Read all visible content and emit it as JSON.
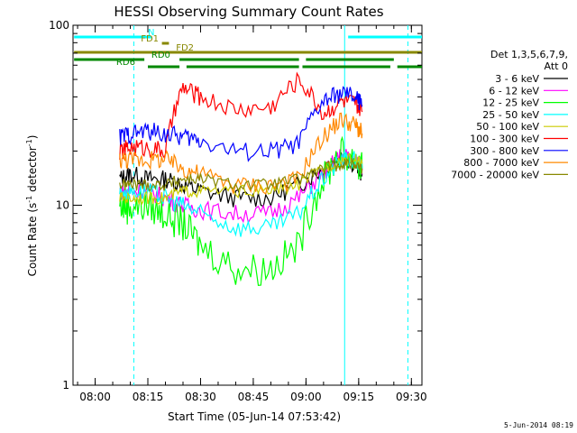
{
  "chart_data": {
    "type": "line",
    "title": "HESSI Observing Summary Count Rates",
    "xlabel": "Start Time (05-Jun-14 07:53:42)",
    "ylabel": "Count Rate (s",
    "ylabel_sup": "-1",
    "ylabel_tail": " detector",
    "ylabel_sup2": "-1",
    "ylabel_close": ")",
    "yscale": "log",
    "ylim": [
      1,
      100
    ],
    "xlim": [
      "07:53:42",
      "09:33:00"
    ],
    "x_ticks": [
      "08:00",
      "08:15",
      "08:30",
      "08:45",
      "09:00",
      "09:15",
      "09:30"
    ],
    "y_ticks": [
      "1",
      "10",
      "100"
    ],
    "legend_header": [
      "Det 1,3,5,6,7,9,",
      "Att 0"
    ],
    "series": [
      {
        "name": "3 - 6 keV",
        "color": "#000000",
        "x": [
          "08:07",
          "08:10",
          "08:15",
          "08:20",
          "08:25",
          "08:30",
          "08:40",
          "08:50",
          "08:58",
          "09:05",
          "09:10",
          "09:14",
          "09:16"
        ],
        "y": [
          14,
          15,
          14,
          14,
          13,
          12,
          11,
          11,
          13,
          16,
          19,
          17,
          15
        ]
      },
      {
        "name": "6 - 12 keV",
        "color": "#ff00ff",
        "x": [
          "08:07",
          "08:10",
          "08:15",
          "08:20",
          "08:25",
          "08:30",
          "08:40",
          "08:50",
          "08:58",
          "09:05",
          "09:10",
          "09:14",
          "09:16"
        ],
        "y": [
          12,
          12,
          12,
          11,
          10,
          9.5,
          9,
          9,
          11,
          15,
          19,
          18,
          16
        ]
      },
      {
        "name": "12 - 25 keV",
        "color": "#00ff00",
        "x": [
          "08:07",
          "08:10",
          "08:15",
          "08:20",
          "08:25",
          "08:30",
          "08:40",
          "08:50",
          "08:58",
          "09:05",
          "09:10",
          "09:14",
          "09:16"
        ],
        "y": [
          10,
          10,
          10,
          9,
          8,
          6,
          4.5,
          4.5,
          6,
          14,
          20,
          18,
          16
        ]
      },
      {
        "name": "25 - 50 keV",
        "color": "#00ffff",
        "x": [
          "08:07",
          "08:10",
          "08:15",
          "08:20",
          "08:25",
          "08:30",
          "08:40",
          "08:50",
          "08:58",
          "09:05",
          "09:10",
          "09:14",
          "09:16"
        ],
        "y": [
          12,
          12,
          12,
          11,
          10,
          9,
          7.5,
          7.5,
          9,
          14,
          18,
          18,
          16
        ]
      },
      {
        "name": "50 - 100 keV",
        "color": "#cccc00",
        "x": [
          "08:07",
          "08:10",
          "08:15",
          "08:20",
          "08:25",
          "08:30",
          "08:40",
          "08:50",
          "08:58",
          "09:05",
          "09:10",
          "09:14",
          "09:16"
        ],
        "y": [
          11,
          11,
          11,
          11,
          12,
          12,
          12,
          12,
          13,
          16,
          18,
          18,
          17
        ]
      },
      {
        "name": "100 - 300 keV",
        "color": "#ff0000",
        "x": [
          "08:07",
          "08:10",
          "08:15",
          "08:20",
          "08:25",
          "08:30",
          "08:40",
          "08:50",
          "08:58",
          "09:05",
          "09:10",
          "09:14",
          "09:16"
        ],
        "y": [
          20,
          21,
          21,
          20,
          45,
          40,
          34,
          35,
          50,
          32,
          38,
          37,
          33
        ]
      },
      {
        "name": "300 - 800 keV",
        "color": "#0000ff",
        "x": [
          "08:07",
          "08:10",
          "08:15",
          "08:20",
          "08:25",
          "08:30",
          "08:40",
          "08:50",
          "08:58",
          "09:05",
          "09:10",
          "09:14",
          "09:16"
        ],
        "y": [
          24,
          25,
          26,
          25,
          24,
          23,
          20,
          20,
          22,
          38,
          42,
          40,
          36
        ]
      },
      {
        "name": "800 - 7000 keV",
        "color": "#ff8800",
        "x": [
          "08:07",
          "08:10",
          "08:15",
          "08:20",
          "08:25",
          "08:30",
          "08:40",
          "08:50",
          "08:58",
          "09:05",
          "09:10",
          "09:14",
          "09:16"
        ],
        "y": [
          18,
          18,
          18,
          18,
          16,
          15,
          13,
          13,
          14,
          24,
          30,
          28,
          25
        ]
      },
      {
        "name": "7000 - 20000 keV",
        "color": "#888800",
        "x": [
          "08:07",
          "08:10",
          "08:15",
          "08:20",
          "08:25",
          "08:30",
          "08:40",
          "08:50",
          "08:58",
          "09:05",
          "09:10",
          "09:14",
          "09:16"
        ],
        "y": [
          13,
          13,
          13,
          13,
          14,
          14,
          13,
          13,
          14,
          16,
          17,
          17,
          16
        ]
      }
    ],
    "flag_bars": [
      {
        "label": "N",
        "color": "#00ffff",
        "segments": [
          [
            "07:54",
            "08:16"
          ],
          [
            "09:12",
            "09:33"
          ]
        ]
      },
      {
        "label": "FD1",
        "color": "#888800",
        "segments": [
          [
            "08:19",
            "08:21"
          ]
        ]
      },
      {
        "label": "FD2",
        "color": "#888800",
        "segments": [
          [
            "07:54",
            "09:33"
          ]
        ]
      },
      {
        "label": "RD0",
        "color": "#008800",
        "segments": [
          [
            "07:54",
            "08:14"
          ],
          [
            "08:24",
            "08:58"
          ],
          [
            "09:00",
            "09:25"
          ]
        ]
      },
      {
        "label": "RD6",
        "color": "#008800",
        "segments": [
          [
            "08:15",
            "08:24"
          ],
          [
            "08:26",
            "08:58"
          ],
          [
            "08:59",
            "09:24"
          ],
          [
            "09:26",
            "09:33"
          ]
        ]
      }
    ],
    "vlines": [
      {
        "x": "08:11",
        "color": "#00ffff",
        "style": "dashed"
      },
      {
        "x": "09:11",
        "color": "#00ffff",
        "style": "solid"
      },
      {
        "x": "09:29",
        "color": "#00ffff",
        "style": "dashed"
      }
    ],
    "grid": false,
    "legend_position": "right"
  },
  "footer": {
    "date_stamp": "5-Jun-2014 08:19"
  }
}
